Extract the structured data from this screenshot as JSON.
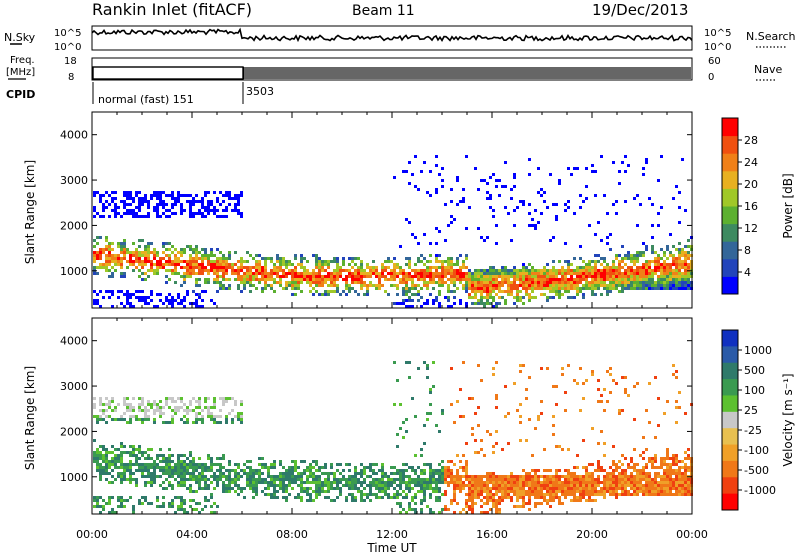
{
  "header": {
    "station": "Rankin Inlet (fitACF)",
    "beam": "Beam 11",
    "date": "19/Dec/2013"
  },
  "status_panels": {
    "nsky_label": "N.Sky",
    "nsearch_label": "N.Search",
    "noise_ticks": [
      "10^5",
      "10^0"
    ],
    "freq_label_top": "Freq.",
    "freq_label_unit": "[MHz]",
    "freq_ticks": [
      "18",
      "8"
    ],
    "nave_label": "Nave",
    "nave_ticks": [
      "60",
      "0"
    ],
    "cpid_label": "CPID",
    "cpid_segments": [
      {
        "label": "normal (fast) 151",
        "start_hour": 0.0,
        "end_hour": 6.0
      },
      {
        "label": "3503",
        "start_hour": 6.0,
        "end_hour": 24.0
      }
    ]
  },
  "chart_data": [
    {
      "type": "heatmap",
      "name": "power",
      "ylabel": "Slant Range [km]",
      "xlabel": "Time UT",
      "x_ticks": [
        "00:00",
        "04:00",
        "08:00",
        "12:00",
        "16:00",
        "20:00",
        "00:00"
      ],
      "x_hours": [
        0,
        4,
        8,
        12,
        16,
        20,
        24
      ],
      "xlim_hours": [
        0,
        24
      ],
      "ylim_km": [
        180,
        4500
      ],
      "y_ticks": [
        1000,
        2000,
        3000,
        4000
      ],
      "colorbar": {
        "label": "Power [dB]",
        "ticks": [
          "4",
          "8",
          "12",
          "16",
          "20",
          "24",
          "28"
        ],
        "colors": [
          "#0000ff",
          "#2244bb",
          "#336699",
          "#3d8a60",
          "#5cb030",
          "#a0c828",
          "#e8b020",
          "#f08018",
          "#f05010",
          "#ff0000"
        ]
      }
    },
    {
      "type": "heatmap",
      "name": "velocity",
      "ylabel": "Slant Range [km]",
      "xlabel": "Time UT",
      "x_ticks": [
        "00:00",
        "04:00",
        "08:00",
        "12:00",
        "16:00",
        "20:00",
        "00:00"
      ],
      "x_hours": [
        0,
        4,
        8,
        12,
        16,
        20,
        24
      ],
      "xlim_hours": [
        0,
        24
      ],
      "ylim_km": [
        180,
        4500
      ],
      "y_ticks": [
        1000,
        2000,
        3000,
        4000
      ],
      "colorbar": {
        "label": "Velocity [m s⁻¹]",
        "ticks": [
          "1000",
          "500",
          "100",
          "25",
          "-25",
          "-100",
          "-500",
          "-1000"
        ],
        "colors": [
          "#1030c0",
          "#2a5aa8",
          "#2f7a6a",
          "#3a9a50",
          "#5cc030",
          "#c8c8c8",
          "#e8c050",
          "#f0a028",
          "#f07818",
          "#f04010",
          "#ff0000"
        ]
      }
    }
  ]
}
